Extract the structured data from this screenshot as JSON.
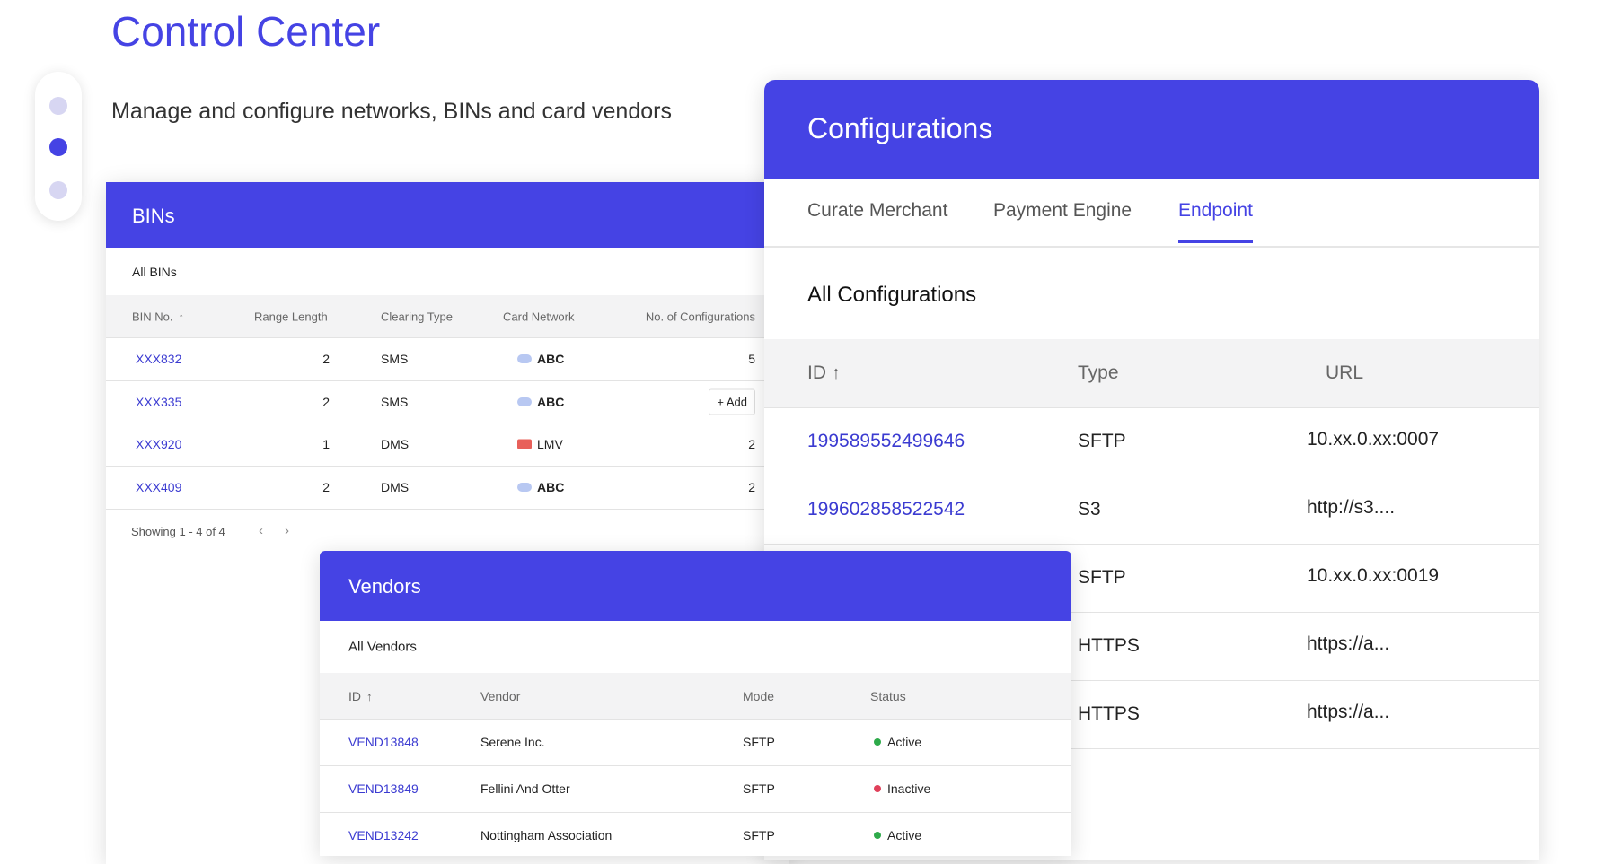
{
  "header": {
    "title": "Control Center",
    "subtitle": "Manage and configure networks, BINs and card vendors"
  },
  "bins": {
    "title": "BINs",
    "subtitle": "All BINs",
    "columns": [
      "BIN No.",
      "Range Length",
      "Clearing Type",
      "Card Network",
      "No. of Configurations"
    ],
    "rows": [
      {
        "bin": "XXX832",
        "range": "2",
        "clearing": "SMS",
        "network": "ABC",
        "configurations": "5"
      },
      {
        "bin": "XXX335",
        "range": "2",
        "clearing": "SMS",
        "network": "ABC",
        "action": "Add"
      },
      {
        "bin": "XXX920",
        "range": "1",
        "clearing": "DMS",
        "network": "LMV",
        "configurations": "2"
      },
      {
        "bin": "XXX409",
        "range": "2",
        "clearing": "DMS",
        "network": "ABC",
        "configurations": "2"
      }
    ],
    "pagination": "Showing 1 - 4 of 4"
  },
  "configurations": {
    "title": "Configurations",
    "tabs": [
      "Curate Merchant",
      "Payment Engine",
      "Endpoint"
    ],
    "subtitle": "All Configurations",
    "columns": [
      "ID",
      "Type",
      "URL"
    ],
    "rows": [
      {
        "id": "199589552499646",
        "type": "SFTP",
        "url": "10.xx.0.xx:0007"
      },
      {
        "id": "199602858522542",
        "type": "S3",
        "url": "http://s3...."
      },
      {
        "type": "SFTP",
        "url": "10.xx.0.xx:0019"
      },
      {
        "type": "HTTPS",
        "url": "https://a..."
      },
      {
        "type": "HTTPS",
        "url": "https://a..."
      }
    ]
  },
  "vendors": {
    "title": "Vendors",
    "subtitle": "All Vendors",
    "columns": [
      "ID",
      "Vendor",
      "Mode",
      "Status"
    ],
    "rows": [
      {
        "id": "VEND13848",
        "vendor": "Serene Inc.",
        "mode": "SFTP",
        "status": "Active"
      },
      {
        "id": "VEND13849",
        "vendor": "Fellini And Otter",
        "mode": "SFTP",
        "status": "Inactive"
      },
      {
        "id": "VEND13242",
        "vendor": "Nottingham Association",
        "mode": "SFTP",
        "status": "Active"
      }
    ]
  }
}
